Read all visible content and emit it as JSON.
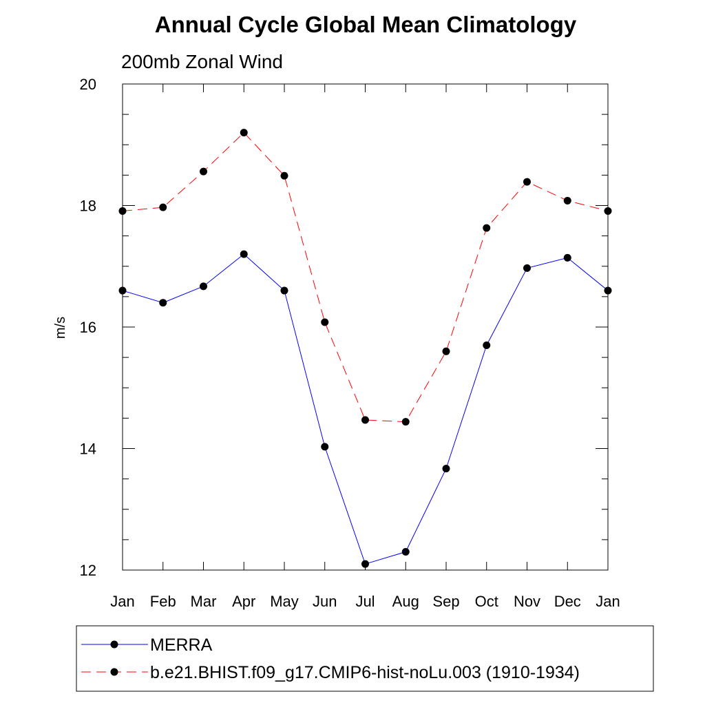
{
  "chart_data": {
    "type": "line",
    "title": "Annual Cycle Global Mean Climatology",
    "subtitle": "200mb Zonal Wind",
    "xlabel": "",
    "ylabel": "m/s",
    "categories": [
      "Jan",
      "Feb",
      "Mar",
      "Apr",
      "May",
      "Jun",
      "Jul",
      "Aug",
      "Sep",
      "Oct",
      "Nov",
      "Dec",
      "Jan"
    ],
    "ylim": [
      12,
      20
    ],
    "yticks": [
      "12",
      "14",
      "16",
      "18",
      "20"
    ],
    "grid": false,
    "legend_position": "bottom",
    "series": [
      {
        "name": "MERRA",
        "color": "#0000ff",
        "line_style": "solid",
        "marker": "filled-circle",
        "values": [
          16.6,
          16.4,
          16.67,
          17.2,
          16.6,
          14.03,
          12.1,
          12.3,
          13.67,
          15.7,
          16.97,
          17.14,
          16.6
        ]
      },
      {
        "name": "b.e21.BHIST.f09_g17.CMIP6-hist-noLu.003 (1910-1934)",
        "color": "#ff0000",
        "line_style": "dashed",
        "marker": "filled-circle",
        "values": [
          17.91,
          17.97,
          18.56,
          19.2,
          18.49,
          16.08,
          14.47,
          14.44,
          15.6,
          17.63,
          18.39,
          18.08,
          17.91
        ]
      }
    ]
  }
}
